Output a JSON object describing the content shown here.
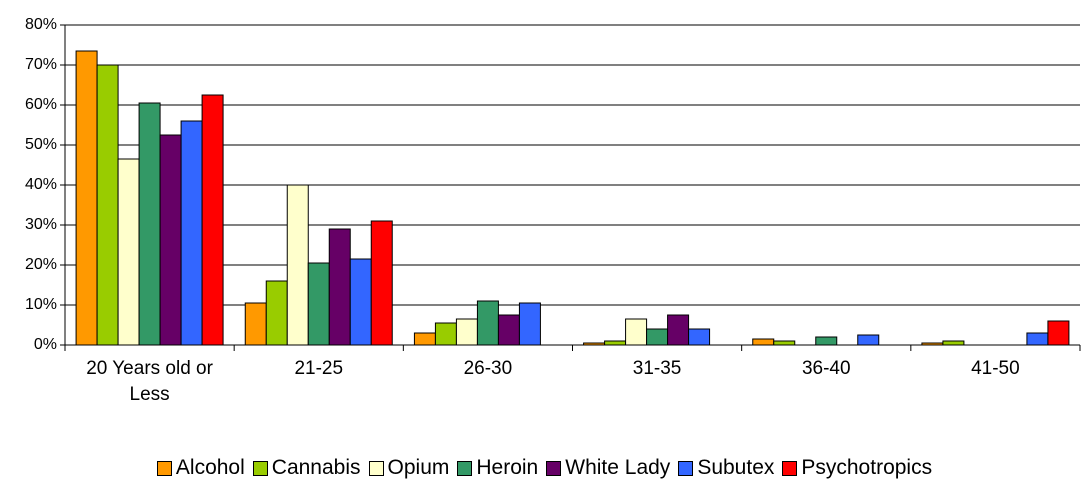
{
  "chart_data": {
    "type": "bar",
    "categories": [
      "20 Years old or Less",
      "21-25",
      "26-30",
      "31-35",
      "36-40",
      "41-50"
    ],
    "series": [
      {
        "name": "Alcohol",
        "color": "#ff9900",
        "values": [
          73.5,
          10.5,
          3,
          0.5,
          1.5,
          0.5
        ]
      },
      {
        "name": "Cannabis",
        "color": "#99cc00",
        "values": [
          70,
          16,
          5.5,
          1,
          1,
          1
        ]
      },
      {
        "name": "Opium",
        "color": "#ffffcc",
        "values": [
          46.5,
          40,
          6.5,
          6.5,
          0,
          0
        ]
      },
      {
        "name": "Heroin",
        "color": "#339966",
        "values": [
          60.5,
          20.5,
          11,
          4,
          2,
          0
        ]
      },
      {
        "name": "White Lady",
        "color": "#660066",
        "values": [
          52.5,
          29,
          7.5,
          7.5,
          0,
          0
        ]
      },
      {
        "name": "Subutex",
        "color": "#3366ff",
        "values": [
          56,
          21.5,
          10.5,
          4,
          2.5,
          3
        ]
      },
      {
        "name": "Psychotropics",
        "color": "#ff0000",
        "values": [
          62.5,
          31,
          0,
          0,
          0,
          6
        ]
      }
    ],
    "ylim": [
      0,
      80
    ],
    "yticks": [
      {
        "value": 0,
        "label": "0%"
      },
      {
        "value": 10,
        "label": "10%"
      },
      {
        "value": 20,
        "label": "20%"
      },
      {
        "value": 30,
        "label": "30%"
      },
      {
        "value": 40,
        "label": "40%"
      },
      {
        "value": 50,
        "label": "50%"
      },
      {
        "value": 60,
        "label": "60%"
      },
      {
        "value": 70,
        "label": "70%"
      },
      {
        "value": 80,
        "label": "80%"
      }
    ],
    "grid": true,
    "legend": "bottom"
  }
}
